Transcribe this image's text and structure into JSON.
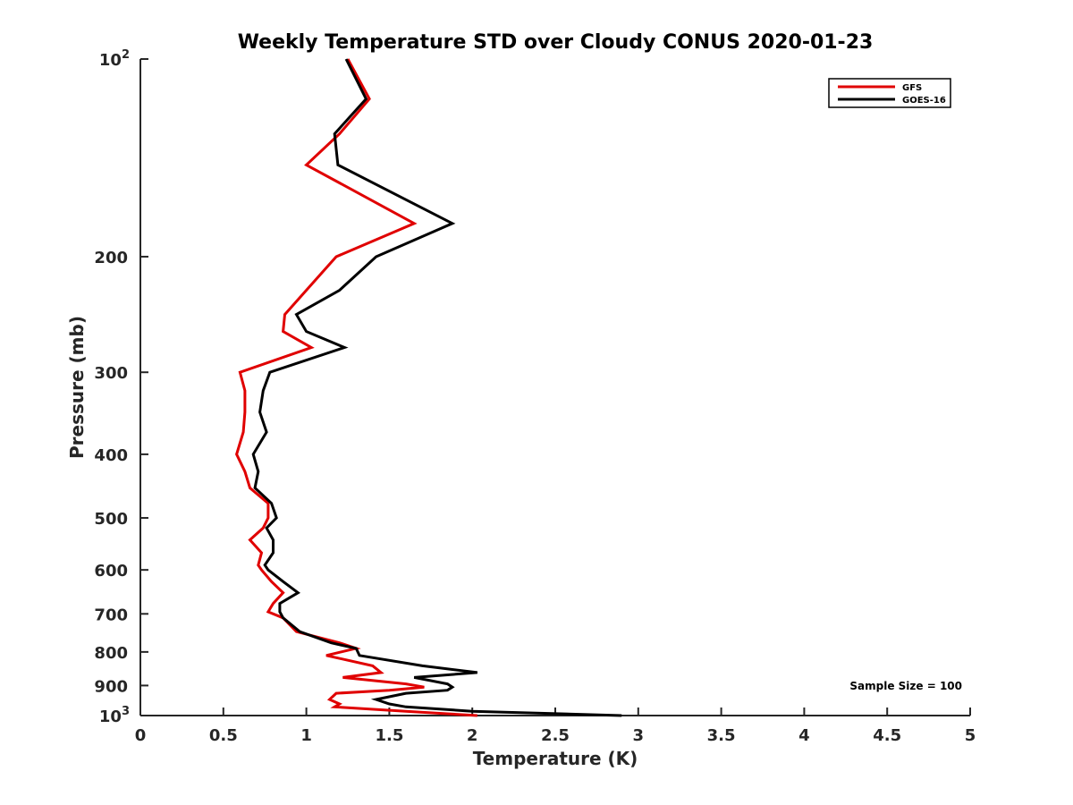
{
  "chart_data": {
    "type": "line",
    "title": "Weekly Temperature STD over Cloudy CONUS 2020-01-23",
    "xlabel": "Temperature (K)",
    "ylabel": "Pressure (mb)",
    "xlim": [
      0,
      5
    ],
    "ylim": [
      100,
      1000
    ],
    "y_scale": "log",
    "y_reversed": true,
    "grid": false,
    "legend_position": "top-right",
    "x_ticks": [
      "0",
      "0.5",
      "1",
      "1.5",
      "2",
      "2.5",
      "3",
      "3.5",
      "4",
      "4.5",
      "5"
    ],
    "y_ticks": [
      {
        "value": 100,
        "base": "10",
        "exp": "2",
        "label": ""
      },
      {
        "value": 200,
        "label": "200"
      },
      {
        "value": 300,
        "label": "300"
      },
      {
        "value": 400,
        "label": "400"
      },
      {
        "value": 500,
        "label": "500"
      },
      {
        "value": 600,
        "label": "600"
      },
      {
        "value": 700,
        "label": "700"
      },
      {
        "value": 800,
        "label": "800"
      },
      {
        "value": 900,
        "label": "900"
      },
      {
        "value": 1000,
        "base": "10",
        "exp": "3",
        "label": ""
      }
    ],
    "annotation": "Sample Size = 100",
    "series": [
      {
        "name": "GFS",
        "color": "#e00000",
        "points": [
          [
            1.25,
            100
          ],
          [
            1.38,
            115
          ],
          [
            1.2,
            130
          ],
          [
            1.0,
            145
          ],
          [
            1.65,
            178
          ],
          [
            1.18,
            200
          ],
          [
            1.0,
            225
          ],
          [
            0.87,
            245
          ],
          [
            0.86,
            260
          ],
          [
            1.03,
            275
          ],
          [
            0.6,
            300
          ],
          [
            0.63,
            320
          ],
          [
            0.63,
            345
          ],
          [
            0.62,
            370
          ],
          [
            0.58,
            400
          ],
          [
            0.63,
            425
          ],
          [
            0.66,
            450
          ],
          [
            0.77,
            475
          ],
          [
            0.77,
            500
          ],
          [
            0.74,
            518
          ],
          [
            0.66,
            540
          ],
          [
            0.73,
            565
          ],
          [
            0.71,
            590
          ],
          [
            0.73,
            600
          ],
          [
            0.79,
            625
          ],
          [
            0.86,
            650
          ],
          [
            0.8,
            675
          ],
          [
            0.77,
            695
          ],
          [
            0.86,
            710
          ],
          [
            0.94,
            745
          ],
          [
            1.2,
            775
          ],
          [
            1.3,
            790
          ],
          [
            1.12,
            810
          ],
          [
            1.4,
            840
          ],
          [
            1.45,
            860
          ],
          [
            1.22,
            875
          ],
          [
            1.6,
            895
          ],
          [
            1.71,
            905
          ],
          [
            1.5,
            915
          ],
          [
            1.18,
            925
          ],
          [
            1.14,
            945
          ],
          [
            1.2,
            960
          ],
          [
            1.17,
            970
          ],
          [
            1.6,
            985
          ],
          [
            2.03,
            1000
          ]
        ]
      },
      {
        "name": "GOES-16",
        "color": "#000000",
        "points": [
          [
            1.24,
            100
          ],
          [
            1.36,
            115
          ],
          [
            1.17,
            130
          ],
          [
            1.19,
            145
          ],
          [
            1.88,
            178
          ],
          [
            1.42,
            200
          ],
          [
            1.2,
            225
          ],
          [
            0.94,
            245
          ],
          [
            1.0,
            260
          ],
          [
            1.23,
            275
          ],
          [
            0.78,
            300
          ],
          [
            0.74,
            320
          ],
          [
            0.72,
            345
          ],
          [
            0.76,
            370
          ],
          [
            0.68,
            400
          ],
          [
            0.71,
            425
          ],
          [
            0.69,
            450
          ],
          [
            0.79,
            475
          ],
          [
            0.82,
            500
          ],
          [
            0.76,
            518
          ],
          [
            0.8,
            540
          ],
          [
            0.8,
            565
          ],
          [
            0.75,
            590
          ],
          [
            0.77,
            600
          ],
          [
            0.86,
            625
          ],
          [
            0.95,
            650
          ],
          [
            0.84,
            675
          ],
          [
            0.84,
            695
          ],
          [
            0.86,
            710
          ],
          [
            0.96,
            745
          ],
          [
            1.15,
            775
          ],
          [
            1.3,
            790
          ],
          [
            1.32,
            810
          ],
          [
            1.7,
            840
          ],
          [
            2.03,
            860
          ],
          [
            1.65,
            875
          ],
          [
            1.85,
            895
          ],
          [
            1.88,
            905
          ],
          [
            1.85,
            915
          ],
          [
            1.6,
            925
          ],
          [
            1.42,
            945
          ],
          [
            1.5,
            960
          ],
          [
            1.6,
            970
          ],
          [
            2.0,
            985
          ],
          [
            2.9,
            1000
          ]
        ]
      }
    ]
  }
}
